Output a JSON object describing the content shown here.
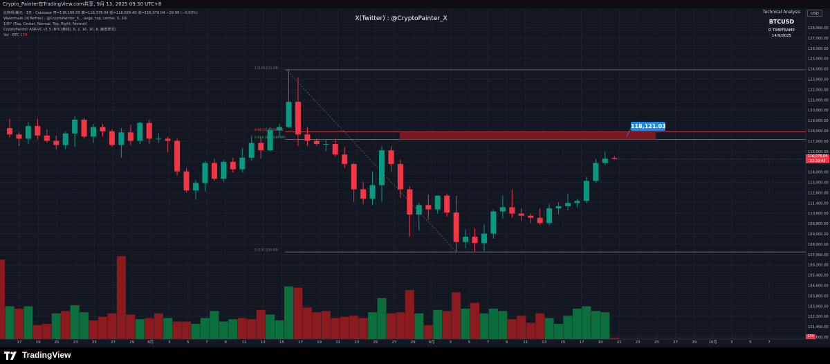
{
  "topbar": {
    "title": "Crypto_Painter在TradingView.com共享, 9月 13, 2025 09:30 UTC+8"
  },
  "legend": {
    "line1": "比特币/美元 · 1天 · Coinbase  开=116,166.03  高=116,378.04  低=116,029.40  收=116,076.04  −29.99 (−0.03%)",
    "line2": "Watermark (X(Twitter) : @CryptoPainter_X, , large, top, center, 5, 30)",
    "line3": "100° (Top, Center, Normal, Top, Right, Normal)",
    "line4": "CryptoPainter ASR-VC v1.5 (BTC(黄线), 5, 2, 16, 10, 8, 高低样式)",
    "line5_label": "Vol · BTC",
    "line5_value": "174"
  },
  "watermark": {
    "text": "X(Twitter) : @CryptoPainter_X"
  },
  "ta_box": {
    "title": "Technical Analysis",
    "symbol": "BTCUSD",
    "timeframe": "D TIMEFRAME",
    "date": "14/9/2025"
  },
  "currency": "USD",
  "target": {
    "label": "118,121.03"
  },
  "price_tag": {
    "price": "116,076.04",
    "countdown": "22:29:43"
  },
  "vol_tag": {
    "value": "174"
  },
  "brand": {
    "name": "TradingView"
  },
  "colors": {
    "bg": "#131722",
    "up": "#089981",
    "down": "#f23645",
    "target": "#1e88e5"
  },
  "fib": {
    "levels": [
      {
        "price": 124533,
        "label": "1 (124,533.00)",
        "color": "#787b86"
      },
      {
        "price": 118656.78,
        "label": "0.66 (118,656.78)",
        "color": "#ff4d4d"
      },
      {
        "price": 117930.89,
        "label": "0.618 (117,930.89)",
        "color": "#4caf50"
      },
      {
        "price": 107250,
        "label": "0 (107,250.00)",
        "color": "#787b86"
      }
    ]
  },
  "chart_data": {
    "type": "candlestick",
    "symbol": "BTCUSD",
    "interval": "1D",
    "ylim": [
      100000,
      128000
    ],
    "y_ticks": [
      "128,000.00",
      "127,000.00",
      "126,000.00",
      "125,000.00",
      "124,000.00",
      "123,000.00",
      "122,000.00",
      "121,000.00",
      "120,000.00",
      "119,000.00",
      "118,000.00",
      "117,000.00",
      "116,000.00",
      "115,000.00",
      "114,000.00",
      "113,000.00",
      "112,600.00",
      "111,400.00",
      "110,600.00",
      "109,800.00",
      "109,000.00",
      "108,000.00",
      "107,000.00",
      "106,200.00",
      "105,400.00",
      "104,600.00",
      "103,800.00",
      "103,000.00",
      "102,200.00",
      "101,400.00",
      "100,600.00"
    ],
    "x_ticks": [
      "17",
      "19",
      "21",
      "23",
      "25",
      "27",
      "29",
      "8月",
      "3",
      "5",
      "7",
      "9",
      "11",
      "13",
      "15",
      "17",
      "19",
      "21",
      "23",
      "25",
      "27",
      "29",
      "9月",
      "3",
      "5",
      "7",
      "9",
      "11",
      "13",
      "15",
      "17",
      "19",
      "21",
      "23",
      "25",
      "27",
      "29",
      "10月",
      "3",
      "5",
      "7"
    ],
    "candles": [
      [
        119000,
        119900,
        118100,
        118400
      ],
      [
        118400,
        118600,
        117300,
        118000
      ],
      [
        118000,
        119600,
        117500,
        119200
      ],
      [
        119200,
        119900,
        117900,
        118300
      ],
      [
        118300,
        118900,
        117600,
        117800
      ],
      [
        117800,
        118300,
        117000,
        117400
      ],
      [
        117400,
        118700,
        117000,
        118500
      ],
      [
        118500,
        120100,
        117200,
        119800
      ],
      [
        119800,
        120000,
        118000,
        118200
      ],
      [
        118200,
        119400,
        117600,
        119100
      ],
      [
        119100,
        119400,
        118200,
        118700
      ],
      [
        118700,
        118900,
        117200,
        117400
      ],
      [
        117400,
        119000,
        116200,
        118600
      ],
      [
        118600,
        119300,
        117400,
        117800
      ],
      [
        117800,
        119600,
        117500,
        119500
      ],
      [
        119500,
        119800,
        117500,
        118000
      ],
      [
        118000,
        118500,
        117600,
        118000
      ],
      [
        118000,
        118200,
        116700,
        117800
      ],
      [
        117800,
        118000,
        114500,
        114900
      ],
      [
        114900,
        115200,
        112900,
        113100
      ],
      [
        113100,
        114100,
        112200,
        113800
      ],
      [
        113800,
        115900,
        113000,
        115700
      ],
      [
        115700,
        116100,
        114000,
        114200
      ],
      [
        114200,
        116000,
        113900,
        115800
      ],
      [
        115800,
        116200,
        114800,
        115100
      ],
      [
        115100,
        117100,
        114800,
        116200
      ],
      [
        116200,
        118300,
        115900,
        117600
      ],
      [
        117600,
        118100,
        116100,
        116900
      ],
      [
        116900,
        119100,
        116800,
        118800
      ],
      [
        118800,
        119400,
        118100,
        119100
      ],
      [
        119100,
        124533,
        119000,
        121500
      ],
      [
        121500,
        123800,
        117300,
        118400
      ],
      [
        118400,
        119100,
        117300,
        117800
      ],
      [
        117800,
        118000,
        117300,
        117500
      ],
      [
        117500,
        117900,
        116800,
        117500
      ],
      [
        117500,
        118000,
        116300,
        116500
      ],
      [
        116500,
        117200,
        115200,
        115600
      ],
      [
        115600,
        115700,
        112000,
        113200
      ],
      [
        113200,
        113900,
        111800,
        112300
      ],
      [
        112300,
        114900,
        111700,
        113600
      ],
      [
        113600,
        117300,
        112000,
        116900
      ],
      [
        116900,
        117300,
        114900,
        115600
      ],
      [
        115600,
        116000,
        112400,
        113200
      ],
      [
        113200,
        113500,
        108700,
        110800
      ],
      [
        110800,
        111900,
        109300,
        111700
      ],
      [
        111700,
        112700,
        110300,
        111300
      ],
      [
        111300,
        112500,
        110900,
        112600
      ],
      [
        112600,
        112800,
        110600,
        111000
      ],
      [
        111000,
        112600,
        107300,
        108200
      ],
      [
        108200,
        109400,
        107600,
        108700
      ],
      [
        108700,
        109500,
        107250,
        108100
      ],
      [
        108100,
        109900,
        107300,
        109000
      ],
      [
        109000,
        111300,
        108500,
        111100
      ],
      [
        111100,
        112600,
        110400,
        111500
      ],
      [
        111500,
        113200,
        110500,
        110900
      ],
      [
        110900,
        111400,
        110200,
        110700
      ],
      [
        110700,
        110900,
        110000,
        110500
      ],
      [
        110500,
        111400,
        109800,
        110000
      ],
      [
        110000,
        111800,
        109800,
        111400
      ],
      [
        111400,
        112000,
        110800,
        111600
      ],
      [
        111600,
        112800,
        111200,
        111900
      ],
      [
        111900,
        112300,
        111500,
        112100
      ],
      [
        112100,
        114400,
        111900,
        114000
      ],
      [
        114000,
        116100,
        113800,
        115700
      ],
      [
        115700,
        116800,
        115500,
        116100
      ],
      [
        116166.03,
        116378.04,
        116029.4,
        116076.04
      ]
    ],
    "volume_dir": [
      "u",
      "d",
      "u",
      "d",
      "d",
      "u",
      "d",
      "u",
      "u",
      "d",
      "d",
      "d",
      "d",
      "d",
      "u",
      "d",
      "d",
      "u",
      "d",
      "d",
      "u",
      "u",
      "u",
      "u",
      "u",
      "d",
      "d",
      "d",
      "u",
      "u",
      "u",
      "d",
      "d",
      "d",
      "d",
      "d",
      "d",
      "d",
      "d",
      "u",
      "u",
      "d",
      "d",
      "d",
      "u",
      "d",
      "u",
      "d",
      "d",
      "u",
      "d",
      "u",
      "u",
      "u",
      "d",
      "d",
      "d",
      "d",
      "u",
      "u",
      "u",
      "u",
      "u",
      "u",
      "u",
      "d"
    ],
    "volume_rel": [
      0.28,
      0.26,
      0.28,
      0.12,
      0.13,
      0.22,
      0.24,
      0.29,
      0.23,
      0.16,
      0.19,
      0.22,
      0.71,
      0.21,
      0.17,
      0.18,
      0.22,
      0.18,
      0.15,
      0.15,
      0.13,
      0.18,
      0.24,
      0.15,
      0.17,
      0.18,
      0.17,
      0.25,
      0.21,
      0.16,
      0.45,
      0.44,
      0.27,
      0.23,
      0.24,
      0.18,
      0.19,
      0.2,
      0.18,
      0.23,
      0.35,
      0.22,
      0.23,
      0.42,
      0.22,
      0.12,
      0.25,
      0.24,
      0.4,
      0.26,
      0.31,
      0.22,
      0.26,
      0.24,
      0.17,
      0.2,
      0.14,
      0.22,
      0.18,
      0.13,
      0.2,
      0.26,
      0.28,
      0.24,
      0.23,
      0.01
    ]
  }
}
